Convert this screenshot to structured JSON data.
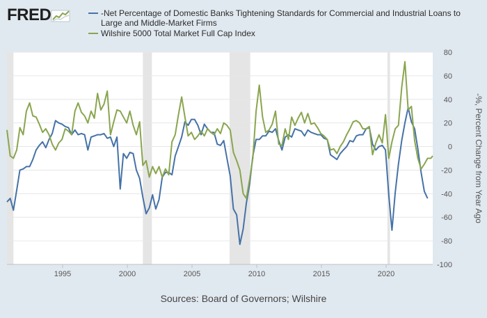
{
  "brand": {
    "logo_text": "FRED"
  },
  "colors": {
    "background": "#e1e9f0",
    "plot_bg": "#ffffff",
    "recession": "#e5e5e5",
    "series1": "#4572a7",
    "series2": "#89a54e"
  },
  "chart_data": {
    "type": "line",
    "title": "",
    "xlabel": "",
    "ylabel": "-%, Percent Change from Year Ago",
    "ylim": [
      -100,
      80
    ],
    "xlim": [
      1990.7,
      2023.6
    ],
    "yticks": [
      "80",
      "60",
      "40",
      "20",
      "0",
      "-20",
      "-40",
      "-60",
      "-80",
      "-100"
    ],
    "xticks": [
      "1995",
      "2000",
      "2005",
      "2010",
      "2015",
      "2020"
    ],
    "grid": true,
    "legend_position": "top",
    "recessions": [
      [
        1990.6,
        1991.2
      ],
      [
        2001.2,
        2001.9
      ],
      [
        2007.9,
        2009.5
      ],
      [
        2020.1,
        2020.3
      ]
    ],
    "series": [
      {
        "name": "-Net Percentage of Domestic Banks Tightening Standards for Commercial and Industrial Loans to Large and Middle-Market Firms",
        "color": "#4572a7",
        "points": [
          [
            1990.7,
            -47
          ],
          [
            1990.95,
            -44
          ],
          [
            1991.2,
            -54
          ],
          [
            1991.45,
            -37
          ],
          [
            1991.7,
            -20
          ],
          [
            1991.95,
            -19
          ],
          [
            1992.2,
            -17
          ],
          [
            1992.45,
            -17
          ],
          [
            1992.7,
            -11
          ],
          [
            1992.95,
            -3
          ],
          [
            1993.2,
            1
          ],
          [
            1993.45,
            4
          ],
          [
            1993.7,
            -1
          ],
          [
            1993.95,
            6
          ],
          [
            1994.2,
            11
          ],
          [
            1994.45,
            22
          ],
          [
            1994.7,
            20
          ],
          [
            1994.95,
            19
          ],
          [
            1995.2,
            17
          ],
          [
            1995.45,
            16
          ],
          [
            1995.7,
            10
          ],
          [
            1995.95,
            14
          ],
          [
            1996.2,
            10
          ],
          [
            1996.45,
            11
          ],
          [
            1996.7,
            10
          ],
          [
            1996.95,
            -3
          ],
          [
            1997.2,
            8
          ],
          [
            1997.45,
            9
          ],
          [
            1997.7,
            10
          ],
          [
            1997.95,
            10
          ],
          [
            1998.2,
            11
          ],
          [
            1998.45,
            7
          ],
          [
            1998.7,
            8
          ],
          [
            1998.95,
            0
          ],
          [
            1999.2,
            8
          ],
          [
            1999.45,
            -36
          ],
          [
            1999.7,
            -6
          ],
          [
            1999.95,
            -10
          ],
          [
            2000.2,
            -5
          ],
          [
            2000.45,
            -6
          ],
          [
            2000.7,
            -20
          ],
          [
            2000.95,
            -27
          ],
          [
            2001.2,
            -43
          ],
          [
            2001.45,
            -57
          ],
          [
            2001.7,
            -52
          ],
          [
            2001.95,
            -41
          ],
          [
            2002.2,
            -53
          ],
          [
            2002.45,
            -45
          ],
          [
            2002.7,
            -26
          ],
          [
            2002.95,
            -22
          ],
          [
            2003.2,
            -22
          ],
          [
            2003.45,
            -24
          ],
          [
            2003.7,
            -8
          ],
          [
            2003.95,
            0
          ],
          [
            2004.2,
            8
          ],
          [
            2004.45,
            21
          ],
          [
            2004.7,
            18
          ],
          [
            2004.95,
            23
          ],
          [
            2005.2,
            23
          ],
          [
            2005.45,
            18
          ],
          [
            2005.7,
            10
          ],
          [
            2005.95,
            19
          ],
          [
            2006.2,
            15
          ],
          [
            2006.45,
            12
          ],
          [
            2006.7,
            12
          ],
          [
            2006.95,
            2
          ],
          [
            2007.2,
            1
          ],
          [
            2007.45,
            5
          ],
          [
            2007.7,
            -10
          ],
          [
            2007.95,
            -25
          ],
          [
            2008.2,
            -53
          ],
          [
            2008.45,
            -58
          ],
          [
            2008.7,
            -83
          ],
          [
            2008.95,
            -70
          ],
          [
            2009.2,
            -48
          ],
          [
            2009.45,
            -32
          ],
          [
            2009.7,
            -8
          ],
          [
            2009.95,
            6
          ],
          [
            2010.2,
            6
          ],
          [
            2010.45,
            9
          ],
          [
            2010.7,
            9
          ],
          [
            2010.95,
            13
          ],
          [
            2011.2,
            12
          ],
          [
            2011.45,
            15
          ],
          [
            2011.7,
            5
          ],
          [
            2011.95,
            -3
          ],
          [
            2012.2,
            8
          ],
          [
            2012.45,
            10
          ],
          [
            2012.7,
            8
          ],
          [
            2012.95,
            15
          ],
          [
            2013.2,
            14
          ],
          [
            2013.45,
            13
          ],
          [
            2013.7,
            9
          ],
          [
            2013.95,
            14
          ],
          [
            2014.2,
            12
          ],
          [
            2014.45,
            11
          ],
          [
            2014.7,
            10
          ],
          [
            2014.95,
            10
          ],
          [
            2015.2,
            7
          ],
          [
            2015.45,
            6
          ],
          [
            2015.7,
            -7
          ],
          [
            2015.95,
            -9
          ],
          [
            2016.2,
            -11
          ],
          [
            2016.45,
            -6
          ],
          [
            2016.7,
            -3
          ],
          [
            2016.95,
            0
          ],
          [
            2017.2,
            5
          ],
          [
            2017.45,
            4
          ],
          [
            2017.7,
            9
          ],
          [
            2017.95,
            10
          ],
          [
            2018.2,
            10
          ],
          [
            2018.45,
            15
          ],
          [
            2018.7,
            16
          ],
          [
            2018.95,
            2
          ],
          [
            2019.2,
            -3
          ],
          [
            2019.45,
            0
          ],
          [
            2019.7,
            1
          ],
          [
            2019.95,
            -3
          ],
          [
            2020.2,
            -41
          ],
          [
            2020.45,
            -71
          ],
          [
            2020.7,
            -39
          ],
          [
            2020.95,
            -15
          ],
          [
            2021.2,
            5
          ],
          [
            2021.45,
            20
          ],
          [
            2021.7,
            33
          ],
          [
            2021.95,
            21
          ],
          [
            2022.2,
            15
          ],
          [
            2022.45,
            -2
          ],
          [
            2022.7,
            -22
          ],
          [
            2022.95,
            -38
          ],
          [
            2023.2,
            -44
          ]
        ]
      },
      {
        "name": "Wilshire 5000 Total Market Full Cap Index",
        "color": "#89a54e",
        "points": [
          [
            1990.7,
            14
          ],
          [
            1990.95,
            -8
          ],
          [
            1991.2,
            -10
          ],
          [
            1991.45,
            -3
          ],
          [
            1991.7,
            16
          ],
          [
            1991.95,
            10
          ],
          [
            1992.2,
            30
          ],
          [
            1992.45,
            37
          ],
          [
            1992.7,
            26
          ],
          [
            1992.95,
            25
          ],
          [
            1993.2,
            19
          ],
          [
            1993.45,
            12
          ],
          [
            1993.7,
            15
          ],
          [
            1993.95,
            10
          ],
          [
            1994.2,
            2
          ],
          [
            1994.45,
            -3
          ],
          [
            1994.7,
            3
          ],
          [
            1994.95,
            6
          ],
          [
            1995.2,
            15
          ],
          [
            1995.45,
            13
          ],
          [
            1995.7,
            10
          ],
          [
            1995.95,
            30
          ],
          [
            1996.2,
            37
          ],
          [
            1996.45,
            29
          ],
          [
            1996.7,
            26
          ],
          [
            1996.95,
            20
          ],
          [
            1997.2,
            30
          ],
          [
            1997.45,
            24
          ],
          [
            1997.7,
            45
          ],
          [
            1997.95,
            31
          ],
          [
            1998.2,
            36
          ],
          [
            1998.45,
            47
          ],
          [
            1998.7,
            10
          ],
          [
            1998.95,
            21
          ],
          [
            1999.2,
            31
          ],
          [
            1999.45,
            30
          ],
          [
            1999.7,
            25
          ],
          [
            1999.95,
            20
          ],
          [
            2000.2,
            30
          ],
          [
            2000.45,
            18
          ],
          [
            2000.7,
            10
          ],
          [
            2000.95,
            21
          ],
          [
            2001.2,
            -16
          ],
          [
            2001.45,
            -12
          ],
          [
            2001.7,
            -26
          ],
          [
            2001.95,
            -17
          ],
          [
            2002.2,
            -23
          ],
          [
            2002.45,
            -17
          ],
          [
            2002.7,
            -26
          ],
          [
            2002.95,
            -19
          ],
          [
            2003.2,
            -24
          ],
          [
            2003.45,
            4
          ],
          [
            2003.7,
            10
          ],
          [
            2003.95,
            27
          ],
          [
            2004.2,
            42
          ],
          [
            2004.45,
            25
          ],
          [
            2004.7,
            9
          ],
          [
            2004.95,
            12
          ],
          [
            2005.2,
            6
          ],
          [
            2005.45,
            9
          ],
          [
            2005.7,
            13
          ],
          [
            2005.95,
            9
          ],
          [
            2006.2,
            15
          ],
          [
            2006.45,
            12
          ],
          [
            2006.7,
            10
          ],
          [
            2006.95,
            15
          ],
          [
            2007.2,
            11
          ],
          [
            2007.45,
            20
          ],
          [
            2007.7,
            18
          ],
          [
            2007.95,
            14
          ],
          [
            2008.2,
            -5
          ],
          [
            2008.45,
            -12
          ],
          [
            2008.7,
            -20
          ],
          [
            2008.95,
            -40
          ],
          [
            2009.2,
            -44
          ],
          [
            2009.45,
            -28
          ],
          [
            2009.7,
            -10
          ],
          [
            2009.95,
            30
          ],
          [
            2010.2,
            52
          ],
          [
            2010.45,
            25
          ],
          [
            2010.7,
            12
          ],
          [
            2010.95,
            14
          ],
          [
            2011.2,
            19
          ],
          [
            2011.45,
            30
          ],
          [
            2011.7,
            2
          ],
          [
            2011.95,
            1
          ],
          [
            2012.2,
            15
          ],
          [
            2012.45,
            6
          ],
          [
            2012.7,
            25
          ],
          [
            2012.95,
            18
          ],
          [
            2013.2,
            24
          ],
          [
            2013.45,
            29
          ],
          [
            2013.7,
            20
          ],
          [
            2013.95,
            28
          ],
          [
            2014.2,
            19
          ],
          [
            2014.45,
            20
          ],
          [
            2014.7,
            16
          ],
          [
            2014.95,
            11
          ],
          [
            2015.2,
            9
          ],
          [
            2015.45,
            6
          ],
          [
            2015.7,
            -3
          ],
          [
            2015.95,
            -2
          ],
          [
            2016.2,
            -6
          ],
          [
            2016.45,
            0
          ],
          [
            2016.7,
            4
          ],
          [
            2016.95,
            10
          ],
          [
            2017.2,
            15
          ],
          [
            2017.45,
            21
          ],
          [
            2017.7,
            22
          ],
          [
            2017.95,
            20
          ],
          [
            2018.2,
            15
          ],
          [
            2018.45,
            15
          ],
          [
            2018.7,
            17
          ],
          [
            2018.95,
            -7
          ],
          [
            2019.2,
            3
          ],
          [
            2019.45,
            10
          ],
          [
            2019.7,
            3
          ],
          [
            2019.95,
            27
          ],
          [
            2020.2,
            -10
          ],
          [
            2020.45,
            4
          ],
          [
            2020.7,
            15
          ],
          [
            2020.95,
            18
          ],
          [
            2021.2,
            50
          ],
          [
            2021.45,
            72
          ],
          [
            2021.7,
            31
          ],
          [
            2021.95,
            34
          ],
          [
            2022.2,
            5
          ],
          [
            2022.45,
            -10
          ],
          [
            2022.7,
            -19
          ],
          [
            2022.95,
            -15
          ],
          [
            2023.2,
            -10
          ],
          [
            2023.45,
            -10
          ],
          [
            2023.6,
            -8
          ]
        ]
      }
    ]
  },
  "source": "Sources: Board of Governors; Wilshire"
}
